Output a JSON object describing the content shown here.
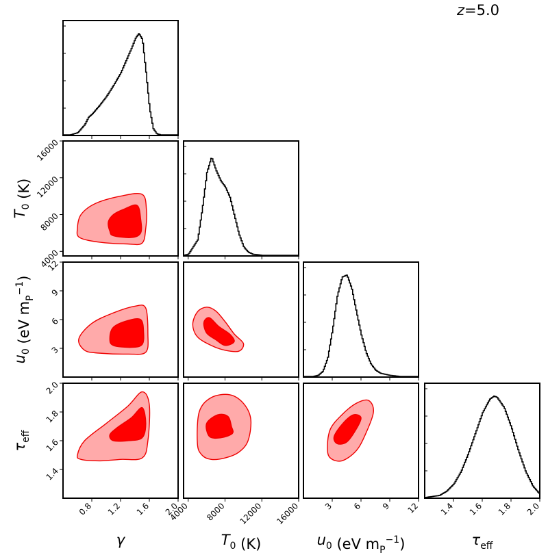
{
  "redshift_label": {
    "var": "z",
    "rest": "=5.0"
  },
  "chart_data": {
    "type": "corner",
    "params": [
      {
        "id": "gamma",
        "tex": "γ",
        "sub": "",
        "unit": "",
        "lim": [
          0.4,
          2.0
        ],
        "ticks": [
          0.8,
          1.2,
          1.6,
          2.0
        ],
        "tick_labels": [
          "0.8",
          "1.2",
          "1.6",
          "2.0"
        ]
      },
      {
        "id": "T0",
        "tex": "T",
        "sub": "0",
        "unit": " (K)",
        "lim": [
          3500,
          16000
        ],
        "ticks": [
          4000,
          8000,
          12000,
          16000
        ],
        "tick_labels": [
          "4000",
          "8000",
          "12000",
          "16000"
        ]
      },
      {
        "id": "u0",
        "tex": "u",
        "sub": "0",
        "unit": " (eV m",
        "unit_sub": "P",
        "unit_sup": "−1",
        "unit_close": ")",
        "lim": [
          0,
          12
        ],
        "ticks": [
          3,
          6,
          9,
          12
        ],
        "tick_labels": [
          "3",
          "6",
          "9",
          "12"
        ]
      },
      {
        "id": "tau_eff",
        "tex": "τ",
        "sub": "eff",
        "unit": "",
        "lim": [
          1.2,
          2.0
        ],
        "ticks": [
          1.4,
          1.6,
          1.8,
          2.0
        ],
        "tick_labels": [
          "1.4",
          "1.6",
          "1.8",
          "2.0"
        ]
      }
    ],
    "marginals": [
      {
        "param": "gamma",
        "x": [
          0.4,
          0.5,
          0.6,
          0.7,
          0.75,
          0.8,
          0.9,
          1.0,
          1.1,
          1.2,
          1.3,
          1.35,
          1.4,
          1.45,
          1.5,
          1.55,
          1.6,
          1.65,
          1.7,
          1.75,
          2.0
        ],
        "density": [
          0.0,
          0.0,
          0.02,
          0.1,
          0.17,
          0.2,
          0.28,
          0.37,
          0.48,
          0.6,
          0.76,
          0.84,
          0.93,
          0.98,
          0.92,
          0.6,
          0.25,
          0.06,
          0.01,
          0.0,
          0.0
        ]
      },
      {
        "param": "T0",
        "x": [
          3500,
          4000,
          5000,
          5500,
          6000,
          6500,
          7000,
          7500,
          8000,
          8500,
          9000,
          9500,
          10000,
          10500,
          11000,
          12000,
          16000
        ],
        "density": [
          0.0,
          0.01,
          0.15,
          0.45,
          0.8,
          0.95,
          0.82,
          0.72,
          0.66,
          0.56,
          0.38,
          0.2,
          0.08,
          0.03,
          0.01,
          0.0,
          0.0
        ]
      },
      {
        "param": "u0",
        "x": [
          0,
          1,
          1.5,
          2,
          2.5,
          3,
          3.5,
          4,
          4.5,
          5,
          5.5,
          6,
          6.5,
          7,
          7.5,
          8,
          9,
          10,
          12
        ],
        "density": [
          0.0,
          0.0,
          0.01,
          0.05,
          0.18,
          0.45,
          0.78,
          0.96,
          0.98,
          0.85,
          0.62,
          0.4,
          0.23,
          0.12,
          0.06,
          0.03,
          0.01,
          0.0,
          0.0
        ]
      },
      {
        "param": "tau_eff",
        "x": [
          1.2,
          1.3,
          1.35,
          1.4,
          1.45,
          1.5,
          1.55,
          1.6,
          1.65,
          1.68,
          1.7,
          1.75,
          1.8,
          1.85,
          1.9,
          1.95,
          2.0
        ],
        "density": [
          0.0,
          0.02,
          0.06,
          0.13,
          0.25,
          0.42,
          0.62,
          0.82,
          0.95,
          0.98,
          0.97,
          0.87,
          0.68,
          0.45,
          0.25,
          0.11,
          0.03
        ]
      }
    ],
    "contours": [
      {
        "x": "gamma",
        "y": "T0",
        "outer": [
          [
            0.6,
            6500
          ],
          [
            0.63,
            5500
          ],
          [
            0.9,
            5000
          ],
          [
            1.3,
            4800
          ],
          [
            1.5,
            4900
          ],
          [
            1.55,
            6500
          ],
          [
            1.56,
            8500
          ],
          [
            1.5,
            10200
          ],
          [
            1.2,
            10000
          ],
          [
            0.85,
            9200
          ],
          [
            0.65,
            8000
          ]
        ],
        "inner": [
          [
            1.05,
            6200
          ],
          [
            1.1,
            5700
          ],
          [
            1.35,
            5500
          ],
          [
            1.48,
            6000
          ],
          [
            1.48,
            7500
          ],
          [
            1.43,
            9000
          ],
          [
            1.25,
            8600
          ],
          [
            1.1,
            8000
          ],
          [
            1.03,
            7200
          ]
        ]
      },
      {
        "x": "gamma",
        "y": "u0",
        "outer": [
          [
            0.62,
            4000
          ],
          [
            0.7,
            2800
          ],
          [
            0.9,
            2500
          ],
          [
            1.3,
            2400
          ],
          [
            1.55,
            2600
          ],
          [
            1.58,
            4500
          ],
          [
            1.55,
            7200
          ],
          [
            1.4,
            7400
          ],
          [
            1.1,
            6700
          ],
          [
            0.8,
            5600
          ]
        ],
        "inner": [
          [
            1.05,
            4000
          ],
          [
            1.1,
            3300
          ],
          [
            1.35,
            3100
          ],
          [
            1.5,
            3400
          ],
          [
            1.52,
            4700
          ],
          [
            1.48,
            6000
          ],
          [
            1.3,
            5900
          ],
          [
            1.1,
            5200
          ]
        ]
      },
      {
        "x": "gamma",
        "y": "tau_eff",
        "outer": [
          [
            0.6,
            1.5
          ],
          [
            0.65,
            1.47
          ],
          [
            0.9,
            1.46
          ],
          [
            1.2,
            1.47
          ],
          [
            1.5,
            1.48
          ],
          [
            1.58,
            1.6
          ],
          [
            1.6,
            1.85
          ],
          [
            1.5,
            1.94
          ],
          [
            1.3,
            1.84
          ],
          [
            1.0,
            1.72
          ],
          [
            0.7,
            1.6
          ]
        ],
        "inner": [
          [
            1.05,
            1.64
          ],
          [
            1.1,
            1.6
          ],
          [
            1.3,
            1.6
          ],
          [
            1.5,
            1.62
          ],
          [
            1.55,
            1.72
          ],
          [
            1.5,
            1.83
          ],
          [
            1.35,
            1.76
          ],
          [
            1.15,
            1.69
          ]
        ]
      },
      {
        "x": "T0",
        "y": "u0",
        "outer": [
          [
            4500,
            5500
          ],
          [
            5000,
            6800
          ],
          [
            6000,
            7300
          ],
          [
            7000,
            6900
          ],
          [
            8000,
            5800
          ],
          [
            9000,
            4500
          ],
          [
            10000,
            3500
          ],
          [
            9500,
            2700
          ],
          [
            8000,
            2800
          ],
          [
            6500,
            3300
          ],
          [
            5000,
            4200
          ]
        ],
        "inner": [
          [
            5700,
            5700
          ],
          [
            6300,
            6200
          ],
          [
            7300,
            5300
          ],
          [
            8500,
            4500
          ],
          [
            9000,
            3700
          ],
          [
            8000,
            3300
          ],
          [
            7000,
            3900
          ],
          [
            6000,
            4600
          ]
        ]
      },
      {
        "x": "T0",
        "y": "tau_eff",
        "outer": [
          [
            5000,
            1.58
          ],
          [
            5500,
            1.5
          ],
          [
            6500,
            1.47
          ],
          [
            8000,
            1.48
          ],
          [
            9500,
            1.52
          ],
          [
            10500,
            1.6
          ],
          [
            10800,
            1.75
          ],
          [
            10000,
            1.86
          ],
          [
            8500,
            1.92
          ],
          [
            6500,
            1.9
          ],
          [
            5200,
            1.8
          ]
        ],
        "inner": [
          [
            6000,
            1.72
          ],
          [
            6300,
            1.63
          ],
          [
            7500,
            1.62
          ],
          [
            8800,
            1.65
          ],
          [
            8700,
            1.7
          ],
          [
            8300,
            1.77
          ],
          [
            7200,
            1.78
          ]
        ]
      },
      {
        "x": "u0",
        "y": "tau_eff",
        "outer": [
          [
            2500,
            1.55
          ],
          [
            2800,
            1.48
          ],
          [
            4000,
            1.46
          ],
          [
            5500,
            1.53
          ],
          [
            6500,
            1.65
          ],
          [
            7300,
            1.8
          ],
          [
            6800,
            1.88
          ],
          [
            5500,
            1.86
          ],
          [
            4000,
            1.78
          ],
          [
            2800,
            1.68
          ]
        ],
        "inner": [
          [
            3200,
            1.63
          ],
          [
            3500,
            1.58
          ],
          [
            4500,
            1.59
          ],
          [
            5500,
            1.68
          ],
          [
            6000,
            1.76
          ],
          [
            5200,
            1.78
          ],
          [
            4100,
            1.72
          ]
        ]
      }
    ],
    "colors": {
      "inner_fill": "#ff0000",
      "outer_fill": "#ffaaaa",
      "contour_line": "#ee0000",
      "hist_line": "#000000"
    },
    "grid": false,
    "legend": "none"
  }
}
